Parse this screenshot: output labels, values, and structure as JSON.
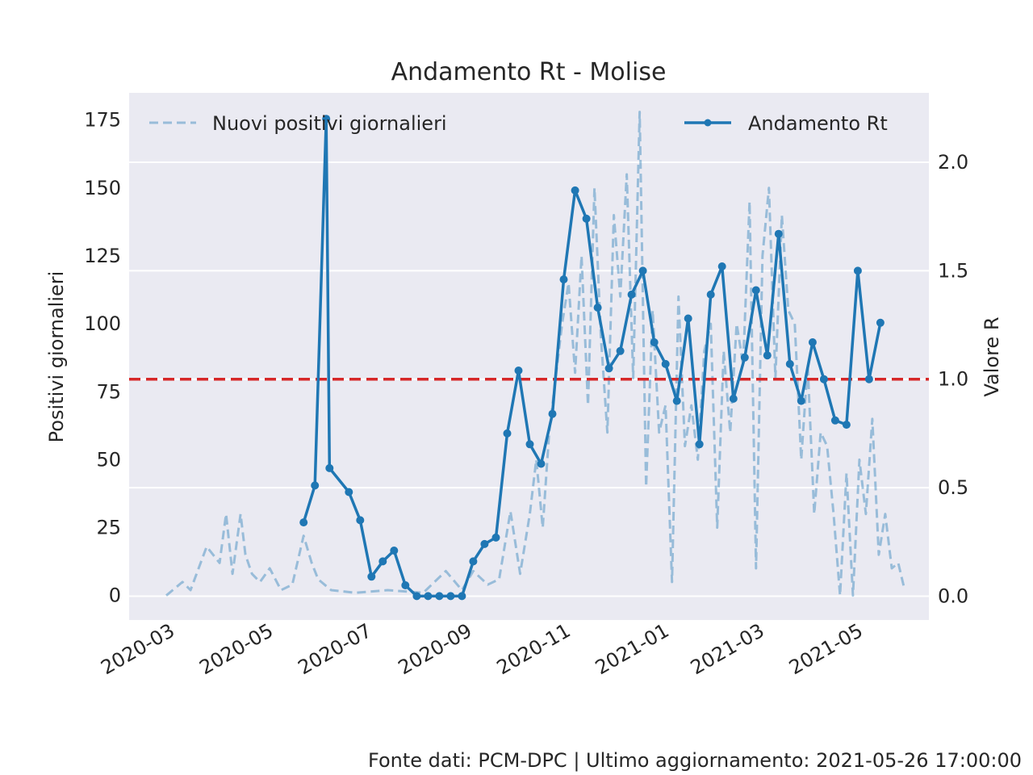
{
  "chart_data": {
    "type": "line",
    "title": "Andamento Rt - Molise",
    "ylabel_left": "Positivi giornalieri",
    "ylabel_right": "Valore R",
    "xticks": [
      "2020-03",
      "2020-05",
      "2020-07",
      "2020-09",
      "2020-11",
      "2021-01",
      "2021-03",
      "2021-05"
    ],
    "yticks_left": [
      "0",
      "25",
      "50",
      "75",
      "100",
      "125",
      "150",
      "175"
    ],
    "yticks_right": [
      "0.0",
      "0.5",
      "1.0",
      "1.5",
      "2.0"
    ],
    "ylim_left": [
      -9,
      185
    ],
    "ylim_right": [
      -0.11,
      2.32
    ],
    "grid": true,
    "threshold": {
      "value": 1.0,
      "color": "#d62728"
    },
    "legend": {
      "left": "Nuovi positivi giornalieri",
      "right": "Andamento Rt"
    },
    "footer": "Fonte dati: PCM-DPC | Ultimo aggiornamento: 2021-05-26 17:00:00",
    "colors": {
      "background": "#eaeaf2",
      "positivi": "#1f77b4",
      "rt": "#1f77b4"
    },
    "series": [
      {
        "name": "Nuovi positivi giornalieri",
        "axis": "left",
        "style": "dashed",
        "x": [
          "2020-02-24",
          "2020-03-05",
          "2020-03-10",
          "2020-03-20",
          "2020-03-28",
          "2020-04-01",
          "2020-04-05",
          "2020-04-10",
          "2020-04-13",
          "2020-04-17",
          "2020-04-22",
          "2020-04-28",
          "2020-05-05",
          "2020-05-12",
          "2020-05-19",
          "2020-05-24",
          "2020-05-28",
          "2020-06-05",
          "2020-06-20",
          "2020-07-10",
          "2020-08-01",
          "2020-08-15",
          "2020-08-25",
          "2020-09-01",
          "2020-09-10",
          "2020-09-17",
          "2020-09-24",
          "2020-09-30",
          "2020-10-06",
          "2020-10-10",
          "2020-10-14",
          "2020-10-18",
          "2020-10-22",
          "2020-10-26",
          "2020-10-30",
          "2020-11-03",
          "2020-11-07",
          "2020-11-11",
          "2020-11-15",
          "2020-11-19",
          "2020-11-23",
          "2020-11-27",
          "2020-12-01",
          "2020-12-05",
          "2020-12-09",
          "2020-12-13",
          "2020-12-17",
          "2020-12-21",
          "2020-12-25",
          "2020-12-29",
          "2021-01-02",
          "2021-01-06",
          "2021-01-10",
          "2021-01-14",
          "2021-01-18",
          "2021-01-22",
          "2021-01-26",
          "2021-01-30",
          "2021-02-03",
          "2021-02-07",
          "2021-02-11",
          "2021-02-15",
          "2021-02-19",
          "2021-02-23",
          "2021-02-27",
          "2021-03-03",
          "2021-03-07",
          "2021-03-11",
          "2021-03-15",
          "2021-03-19",
          "2021-03-23",
          "2021-03-27",
          "2021-03-31",
          "2021-04-04",
          "2021-04-08",
          "2021-04-12",
          "2021-04-16",
          "2021-04-20",
          "2021-04-24",
          "2021-04-28",
          "2021-05-02",
          "2021-05-06",
          "2021-05-10",
          "2021-05-14",
          "2021-05-18",
          "2021-05-22",
          "2021-05-26"
        ],
        "values": [
          0,
          5,
          2,
          18,
          12,
          30,
          8,
          30,
          15,
          8,
          5,
          10,
          2,
          4,
          22,
          12,
          6,
          2,
          1,
          2,
          1,
          9,
          2,
          9,
          4,
          6,
          31,
          8,
          30,
          50,
          25,
          60,
          80,
          100,
          115,
          82,
          125,
          70,
          150,
          95,
          60,
          140,
          110,
          155,
          80,
          178,
          40,
          105,
          60,
          70,
          5,
          110,
          55,
          70,
          50,
          90,
          100,
          25,
          90,
          60,
          100,
          85,
          145,
          10,
          125,
          150,
          80,
          140,
          105,
          100,
          50,
          85,
          30,
          60,
          55,
          30,
          0,
          45,
          0,
          50,
          30,
          65,
          15,
          30,
          10,
          12,
          2
        ]
      },
      {
        "name": "Andamento Rt",
        "axis": "right",
        "style": "solid-markers",
        "x": [
          "2020-05-19",
          "2020-05-26",
          "2020-06-02",
          "2020-06-04",
          "2020-06-16",
          "2020-06-23",
          "2020-06-30",
          "2020-07-07",
          "2020-07-14",
          "2020-07-21",
          "2020-07-28",
          "2020-08-04",
          "2020-08-11",
          "2020-08-18",
          "2020-08-25",
          "2020-09-01",
          "2020-09-08",
          "2020-09-15",
          "2020-09-22",
          "2020-09-29",
          "2020-10-06",
          "2020-10-13",
          "2020-10-20",
          "2020-10-27",
          "2020-11-03",
          "2020-11-10",
          "2020-11-17",
          "2020-11-24",
          "2020-12-01",
          "2020-12-08",
          "2020-12-15",
          "2020-12-22",
          "2020-12-29",
          "2021-01-05",
          "2021-01-12",
          "2021-01-19",
          "2021-01-26",
          "2021-02-02",
          "2021-02-09",
          "2021-02-16",
          "2021-02-23",
          "2021-03-02",
          "2021-03-09",
          "2021-03-16",
          "2021-03-23",
          "2021-03-30",
          "2021-04-06",
          "2021-04-13",
          "2021-04-20",
          "2021-04-27",
          "2021-05-04",
          "2021-05-11"
        ],
        "values": [
          0.34,
          0.51,
          2.2,
          0.59,
          0.48,
          0.35,
          0.09,
          0.16,
          0.21,
          0.05,
          0.0,
          0.0,
          0.0,
          0.0,
          0.0,
          0.16,
          0.24,
          0.27,
          0.75,
          1.04,
          0.7,
          0.61,
          0.84,
          1.46,
          1.87,
          1.74,
          1.33,
          1.05,
          1.13,
          1.39,
          1.5,
          1.17,
          1.07,
          0.9,
          1.28,
          0.7,
          1.39,
          1.52,
          0.91,
          1.1,
          1.41,
          1.11,
          1.67,
          1.07,
          0.9,
          1.17,
          1.0,
          0.81,
          0.79,
          1.5,
          1.0,
          1.26
        ]
      }
    ]
  }
}
